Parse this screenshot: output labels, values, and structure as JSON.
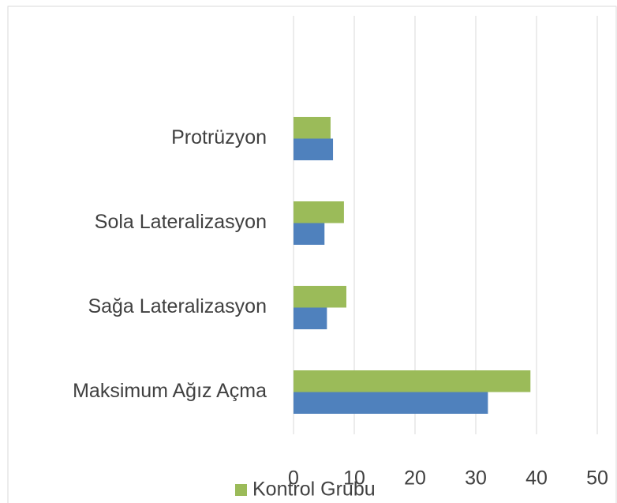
{
  "chart_data": {
    "type": "bar",
    "orientation": "horizontal",
    "categories": [
      "Maksimum Ağız Açma",
      "Sağa Lateralizasyon",
      "Sola Lateralizasyon",
      "Protrüzyon"
    ],
    "series": [
      {
        "color": "#4f81bd",
        "values": [
          32,
          5.5,
          5.1,
          6.5
        ]
      },
      {
        "name": "Kontrol Grubu",
        "color": "#9bbb59",
        "values": [
          39,
          8.7,
          8.3,
          6.1
        ]
      }
    ],
    "xlim": [
      0,
      50
    ],
    "xticks": [
      0,
      10,
      20,
      30,
      40,
      50
    ],
    "grid": true,
    "legend": "bottom"
  }
}
